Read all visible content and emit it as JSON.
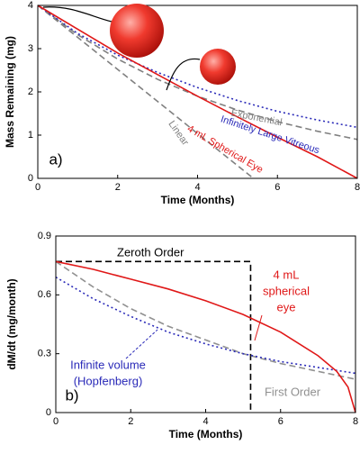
{
  "chart_data": [
    {
      "type": "line",
      "xlabel": "Time (Months)",
      "ylabel": "Mass Remaining (mg)",
      "xlim": [
        0,
        8
      ],
      "ylim": [
        0,
        4
      ],
      "xticks": [
        0,
        2,
        4,
        6,
        8
      ],
      "yticks": [
        0,
        1,
        2,
        3,
        4
      ],
      "series": [
        {
          "name": "Linear",
          "color": "#808080",
          "dash": "dashed",
          "x": [
            0,
            5.4
          ],
          "values": [
            4,
            0
          ]
        },
        {
          "name": "Exponential",
          "color": "#808080",
          "dash": "dashed",
          "x": [
            0,
            1,
            2,
            3,
            4,
            5,
            6,
            7,
            8
          ],
          "values": [
            4,
            3.32,
            2.76,
            2.29,
            1.9,
            1.58,
            1.31,
            1.09,
            0.9
          ]
        },
        {
          "name": "Infinitely Large Vitreous",
          "color": "#2a2ab8",
          "dash": "dotted",
          "x": [
            0,
            1,
            2,
            3,
            4,
            5,
            6,
            7,
            8
          ],
          "values": [
            4,
            3.35,
            2.85,
            2.45,
            2.1,
            1.8,
            1.55,
            1.35,
            1.18
          ]
        },
        {
          "name": "4 mL Spherical Eye",
          "color": "#e01818",
          "dash": "solid",
          "x": [
            0,
            1,
            2,
            3,
            4,
            5,
            6,
            7,
            8
          ],
          "values": [
            4,
            3.45,
            2.9,
            2.4,
            1.9,
            1.42,
            0.95,
            0.5,
            0
          ]
        }
      ],
      "annotations": [
        {
          "text": "Exponential",
          "color": "#808080"
        },
        {
          "text": "Infinitely Large Vitreous",
          "color": "#2a2ab8"
        },
        {
          "text": "4 mL Spherical Eye",
          "color": "#e01818"
        },
        {
          "text": "Linear",
          "color": "#808080"
        },
        {
          "text": "a)",
          "color": "#000000"
        }
      ]
    },
    {
      "type": "line",
      "xlabel": "Time (Months)",
      "ylabel": "dM/dt (mg/month)",
      "xlim": [
        0,
        8
      ],
      "ylim": [
        0,
        0.9
      ],
      "xticks": [
        0,
        2,
        4,
        6,
        8
      ],
      "yticks": [
        0,
        0.3,
        0.6,
        0.9
      ],
      "series": [
        {
          "name": "Zeroth Order",
          "color": "#000000",
          "dash": "dashed",
          "x": [
            0,
            5.2,
            5.2
          ],
          "values": [
            0.77,
            0.77,
            0
          ]
        },
        {
          "name": "First Order",
          "color": "#909090",
          "dash": "dashed",
          "x": [
            0,
            1,
            2,
            3,
            4,
            5,
            6,
            7,
            8
          ],
          "values": [
            0.77,
            0.64,
            0.53,
            0.44,
            0.37,
            0.3,
            0.25,
            0.21,
            0.17
          ]
        },
        {
          "name": "Infinite volume (Hopfenberg)",
          "color": "#2a2ab8",
          "dash": "dotted",
          "x": [
            0,
            1,
            2,
            3,
            4,
            5,
            6,
            7,
            8
          ],
          "values": [
            0.69,
            0.58,
            0.49,
            0.41,
            0.35,
            0.3,
            0.26,
            0.23,
            0.2
          ]
        },
        {
          "name": "4 mL spherical eye",
          "color": "#e01818",
          "dash": "solid",
          "x": [
            0,
            1,
            2,
            3,
            4,
            5,
            6,
            7,
            7.5,
            7.8,
            8
          ],
          "values": [
            0.77,
            0.73,
            0.68,
            0.63,
            0.57,
            0.5,
            0.41,
            0.29,
            0.21,
            0.13,
            0
          ]
        }
      ],
      "annotations": [
        {
          "text": "Zeroth Order",
          "color": "#000000"
        },
        {
          "text": "4 mL",
          "color": "#e01818"
        },
        {
          "text": "spherical",
          "color": "#e01818"
        },
        {
          "text": "eye",
          "color": "#e01818"
        },
        {
          "text": "Infinite volume",
          "color": "#2a2ab8"
        },
        {
          "text": "(Hopfenberg)",
          "color": "#2a2ab8"
        },
        {
          "text": "First Order",
          "color": "#909090"
        },
        {
          "text": "b)",
          "color": "#000000"
        }
      ]
    }
  ]
}
